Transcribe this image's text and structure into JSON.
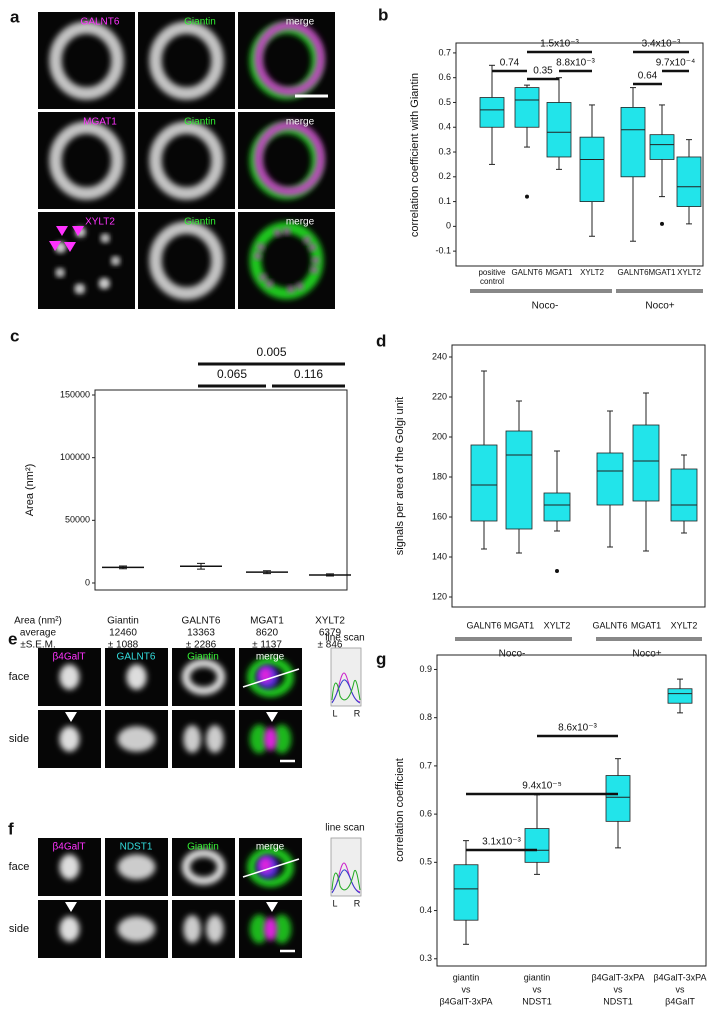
{
  "image_panels": [
    {
      "panel": "a",
      "rows": [
        [
          "GALNT6",
          "Giantin",
          "merge"
        ],
        [
          "MGAT1",
          "Giantin",
          "merge"
        ],
        [
          "XYLT2",
          "Giantin",
          "merge"
        ]
      ]
    },
    {
      "panel": "e",
      "channels": [
        "β4GalT",
        "GALNT6",
        "Giantin",
        "merge"
      ],
      "rows": [
        "face",
        "side"
      ],
      "line_scan": "line scan",
      "line_scan_ends": [
        "L",
        "R"
      ]
    },
    {
      "panel": "f",
      "channels": [
        "β4GalT",
        "NDST1",
        "Giantin",
        "merge"
      ],
      "rows": [
        "face",
        "side"
      ],
      "line_scan": "line scan",
      "line_scan_ends": [
        "L",
        "R"
      ]
    }
  ],
  "chart_data": [
    {
      "type": "box",
      "panel": "b",
      "ylabel": "correlation coefficient with Giantin",
      "ylim": [
        -0.16,
        0.74
      ],
      "yticks": [
        -0.1,
        0,
        0.1,
        0.2,
        0.3,
        0.4,
        0.5,
        0.6,
        0.7
      ],
      "categories": [
        [
          "positive",
          "control"
        ],
        [
          "GALNT6"
        ],
        [
          "MGAT1"
        ],
        [
          "XYLT2"
        ],
        [
          "GALNT6"
        ],
        [
          "MGAT1"
        ],
        [
          "XYLT2"
        ]
      ],
      "color": "#22e4ea",
      "groups": [
        "Noco-",
        "Noco+"
      ],
      "boxes": [
        {
          "min": 0.25,
          "q1": 0.4,
          "median": 0.47,
          "q3": 0.52,
          "max": 0.65,
          "outliers": []
        },
        {
          "min": 0.32,
          "q1": 0.4,
          "median": 0.51,
          "q3": 0.56,
          "max": 0.57,
          "outliers": [
            0.12
          ]
        },
        {
          "min": 0.23,
          "q1": 0.28,
          "median": 0.38,
          "q3": 0.5,
          "max": 0.6,
          "outliers": []
        },
        {
          "min": -0.04,
          "q1": 0.1,
          "median": 0.27,
          "q3": 0.36,
          "max": 0.49,
          "outliers": []
        },
        {
          "min": -0.06,
          "q1": 0.2,
          "median": 0.39,
          "q3": 0.48,
          "max": 0.56,
          "outliers": []
        },
        {
          "min": 0.12,
          "q1": 0.27,
          "median": 0.33,
          "q3": 0.37,
          "max": 0.49,
          "outliers": [
            0.01
          ]
        },
        {
          "min": 0.01,
          "q1": 0.08,
          "median": 0.16,
          "q3": 0.28,
          "max": 0.35,
          "outliers": []
        }
      ],
      "comparisons": [
        {
          "pair": [
            0,
            1
          ],
          "label": "0.74"
        },
        {
          "pair": [
            1,
            3
          ],
          "label": "1.5x10⁻³"
        },
        {
          "pair": [
            1,
            2
          ],
          "label": "0.35"
        },
        {
          "pair": [
            2,
            3
          ],
          "label": "8.8x10⁻³"
        },
        {
          "pair": [
            4,
            6
          ],
          "label": "3.4x10⁻³"
        },
        {
          "pair": [
            4,
            5
          ],
          "label": "0.64"
        },
        {
          "pair": [
            5,
            6
          ],
          "label": "9.7x10⁻⁴"
        }
      ]
    },
    {
      "type": "strip",
      "panel": "c",
      "ylabel": "Area (nm²)",
      "ylim": [
        -5600,
        154000
      ],
      "yticks": [
        0,
        50000,
        100000,
        150000
      ],
      "categories": [
        "Giantin",
        "GALNT6",
        "MGAT1",
        "XYLT2"
      ],
      "means": [
        12460,
        13363,
        8620,
        6379
      ],
      "sem": [
        1088,
        2286,
        1137,
        846
      ],
      "sem_labels": [
        "± 1088",
        "± 2286",
        "± 1137",
        "± 846"
      ],
      "table_headers": [
        "Area (nm²)",
        "average",
        "±S.E.M."
      ],
      "comparisons": [
        {
          "pair": [
            1,
            3
          ],
          "label": "0.005"
        },
        {
          "pair": [
            1,
            2
          ],
          "label": "0.065"
        },
        {
          "pair": [
            2,
            3
          ],
          "label": "0.116"
        }
      ]
    },
    {
      "type": "box",
      "panel": "d",
      "ylabel": "signals per area of the Golgi unit",
      "ylim": [
        115,
        246
      ],
      "yticks": [
        120,
        140,
        160,
        180,
        200,
        220,
        240
      ],
      "categories": [
        [
          "GALNT6"
        ],
        [
          "MGAT1"
        ],
        [
          "XYLT2"
        ],
        [
          "GALNT6"
        ],
        [
          "MGAT1"
        ],
        [
          "XYLT2"
        ]
      ],
      "color": "#22e4ea",
      "groups": [
        "Noco-",
        "Noco+"
      ],
      "boxes": [
        {
          "min": 144,
          "q1": 158,
          "median": 176,
          "q3": 196,
          "max": 233,
          "outliers": []
        },
        {
          "min": 142,
          "q1": 154,
          "median": 191,
          "q3": 203,
          "max": 218,
          "outliers": []
        },
        {
          "min": 153,
          "q1": 158,
          "median": 166,
          "q3": 172,
          "max": 193,
          "outliers": [
            133
          ]
        },
        {
          "min": 145,
          "q1": 166,
          "median": 183,
          "q3": 192,
          "max": 213,
          "outliers": []
        },
        {
          "min": 143,
          "q1": 168,
          "median": 188,
          "q3": 206,
          "max": 222,
          "outliers": []
        },
        {
          "min": 152,
          "q1": 158,
          "median": 166,
          "q3": 184,
          "max": 191,
          "outliers": []
        }
      ],
      "comparisons": []
    },
    {
      "type": "box",
      "panel": "g",
      "ylabel": "correlation coefficient",
      "ylim": [
        0.285,
        0.93
      ],
      "yticks": [
        0.3,
        0.4,
        0.5,
        0.6,
        0.7,
        0.8,
        0.9
      ],
      "categories": [
        [
          "giantin",
          "vs",
          "β4GalT-3xPA"
        ],
        [
          "giantin",
          "vs",
          "NDST1"
        ],
        [
          "β4GalT-3xPA",
          "vs",
          "NDST1"
        ],
        [
          "β4GalT-3xPA",
          "vs",
          "β4GalT"
        ]
      ],
      "color": "#22e4ea",
      "groups": [],
      "boxes": [
        {
          "min": 0.33,
          "q1": 0.38,
          "median": 0.445,
          "q3": 0.495,
          "max": 0.545,
          "outliers": []
        },
        {
          "min": 0.475,
          "q1": 0.5,
          "median": 0.525,
          "q3": 0.57,
          "max": 0.64,
          "outliers": []
        },
        {
          "min": 0.53,
          "q1": 0.585,
          "median": 0.635,
          "q3": 0.68,
          "max": 0.715,
          "outliers": []
        },
        {
          "min": 0.81,
          "q1": 0.83,
          "median": 0.85,
          "q3": 0.86,
          "max": 0.88,
          "outliers": []
        }
      ],
      "comparisons": [
        {
          "pair": [
            0,
            1
          ],
          "label": "3.1x10⁻³"
        },
        {
          "pair": [
            0,
            2
          ],
          "label": "9.4x10⁻⁵"
        },
        {
          "pair": [
            1,
            2
          ],
          "label": "8.6x10⁻³"
        }
      ]
    }
  ]
}
